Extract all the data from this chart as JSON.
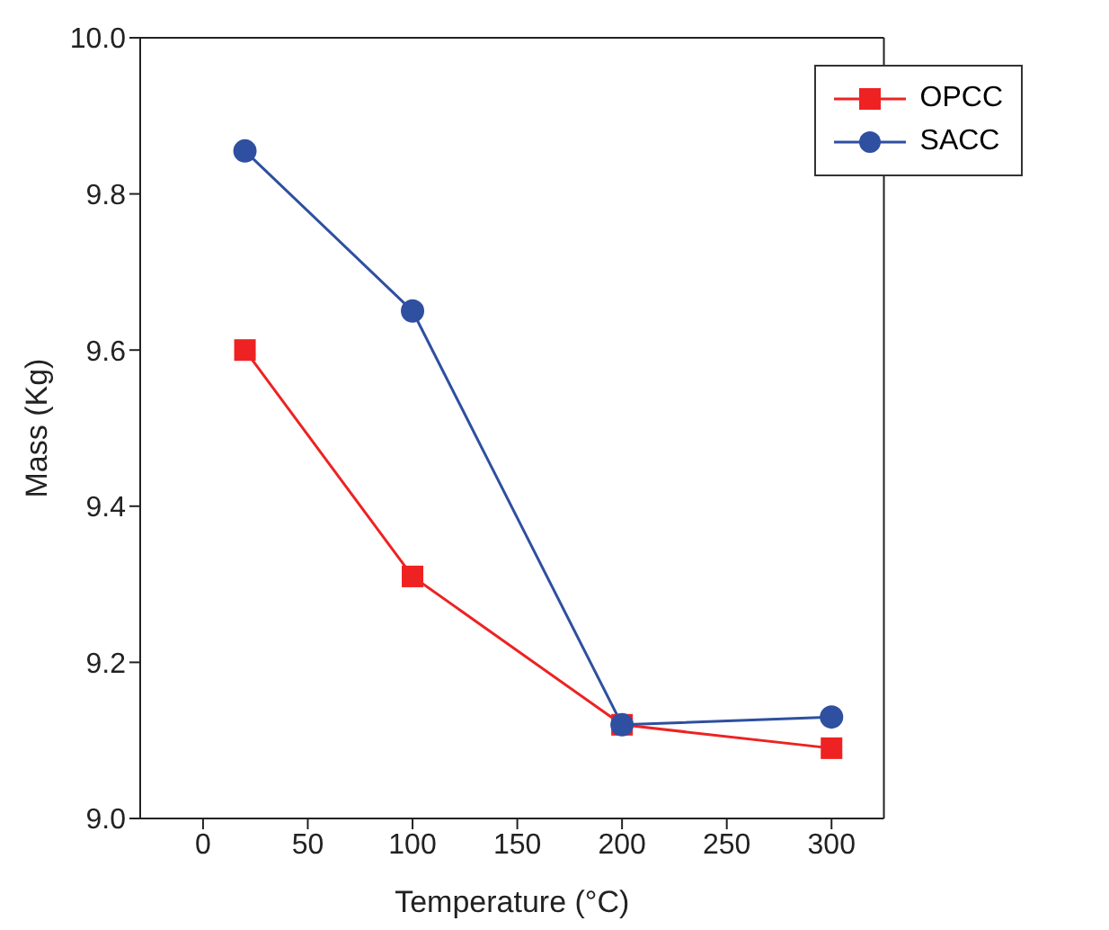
{
  "chart_data": {
    "type": "line",
    "xlabel": "Temperature (°C)",
    "ylabel": "Mass (Kg)",
    "x": [
      20,
      100,
      200,
      300
    ],
    "series": [
      {
        "name": "OPCC",
        "color": "#ee2222",
        "marker": "square",
        "values": [
          9.6,
          9.31,
          9.12,
          9.09
        ]
      },
      {
        "name": "SACC",
        "color": "#2f4fa0",
        "marker": "circle",
        "values": [
          9.855,
          9.65,
          9.12,
          9.13
        ]
      }
    ],
    "xlim": [
      -30,
      325
    ],
    "xticks": [
      0,
      50,
      100,
      150,
      200,
      250,
      300
    ],
    "ylim": [
      9.0,
      10.0
    ],
    "yticks": [
      {
        "value": 9.0,
        "label": "9.0"
      },
      {
        "value": 9.2,
        "label": "9.2"
      },
      {
        "value": 9.4,
        "label": "9.4"
      },
      {
        "value": 9.6,
        "label": "9.6"
      },
      {
        "value": 9.8,
        "label": "9.8"
      },
      {
        "value": 10.0,
        "label": "10.0"
      }
    ],
    "grid": false,
    "legend": "top right"
  }
}
